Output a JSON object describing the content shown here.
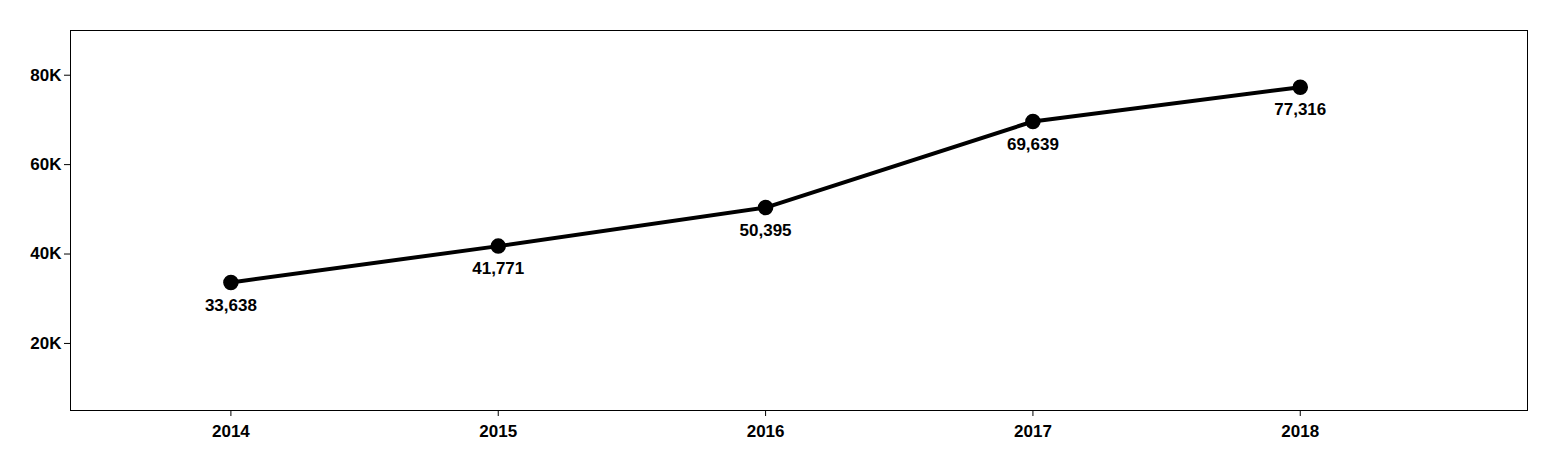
{
  "chart_data": {
    "type": "line",
    "x": [
      2014,
      2015,
      2016,
      2017,
      2018
    ],
    "values": [
      33638,
      41771,
      50395,
      69639,
      77316
    ],
    "value_labels": [
      "33,638",
      "41,771",
      "50,395",
      "69,639",
      "77,316"
    ],
    "data_labels": true,
    "color": "#000000",
    "marker": "circle",
    "xlim": [
      2013.4,
      2018.85
    ],
    "xticks": [
      2014,
      2015,
      2016,
      2017,
      2018
    ],
    "ylim": [
      5000,
      90000
    ],
    "yticks": [
      {
        "value": 20000,
        "label": "20K"
      },
      {
        "value": 40000,
        "label": "40K"
      },
      {
        "value": 60000,
        "label": "60K"
      },
      {
        "value": 80000,
        "label": "80K"
      }
    ],
    "grid": false
  }
}
